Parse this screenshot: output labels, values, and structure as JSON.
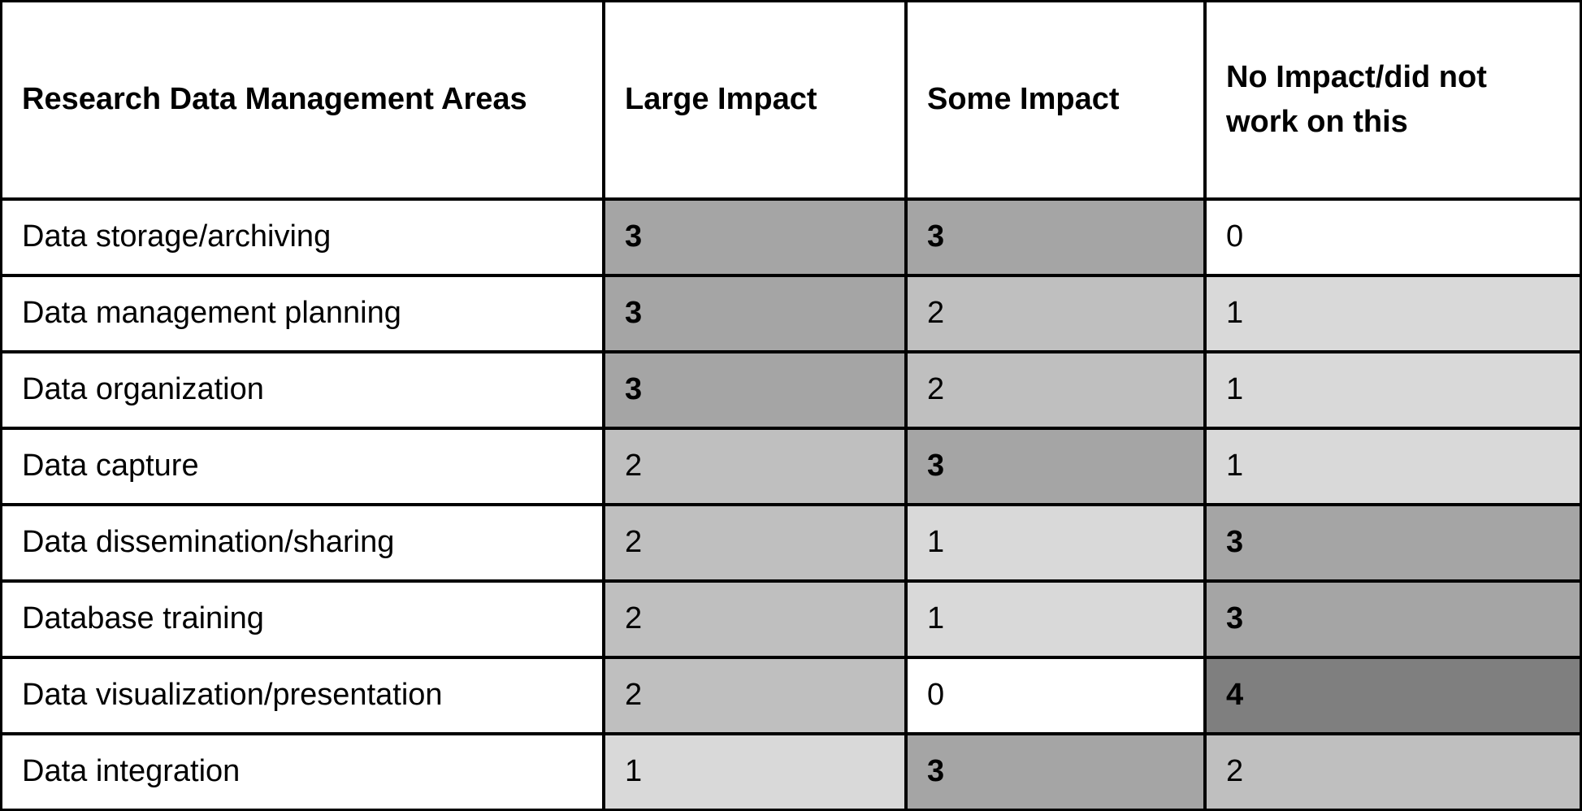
{
  "table": {
    "header": [
      "Research Data Management Areas",
      "Large Impact",
      "Some Impact",
      "No Impact/did not work on this"
    ],
    "rows": [
      [
        "Data storage/archiving",
        3,
        3,
        0
      ],
      [
        "Data management planning",
        3,
        2,
        1
      ],
      [
        "Data organization",
        3,
        2,
        1
      ],
      [
        "Data capture",
        2,
        3,
        1
      ],
      [
        "Data dissemination/sharing",
        2,
        1,
        3
      ],
      [
        "Database training",
        2,
        1,
        3
      ],
      [
        "Data visualization/presentation",
        2,
        0,
        4
      ],
      [
        "Data integration",
        1,
        3,
        2
      ]
    ],
    "cell_styles": [
      {
        "color": "#ffffff",
        "bold": false
      },
      {
        "color": "#d9d9d9",
        "bold": false
      },
      {
        "color": "#bfbfbf",
        "bold": false
      },
      {
        "color": "#a5a5a5",
        "bold": true
      },
      {
        "color": "#7f7f7f",
        "bold": true
      }
    ]
  }
}
